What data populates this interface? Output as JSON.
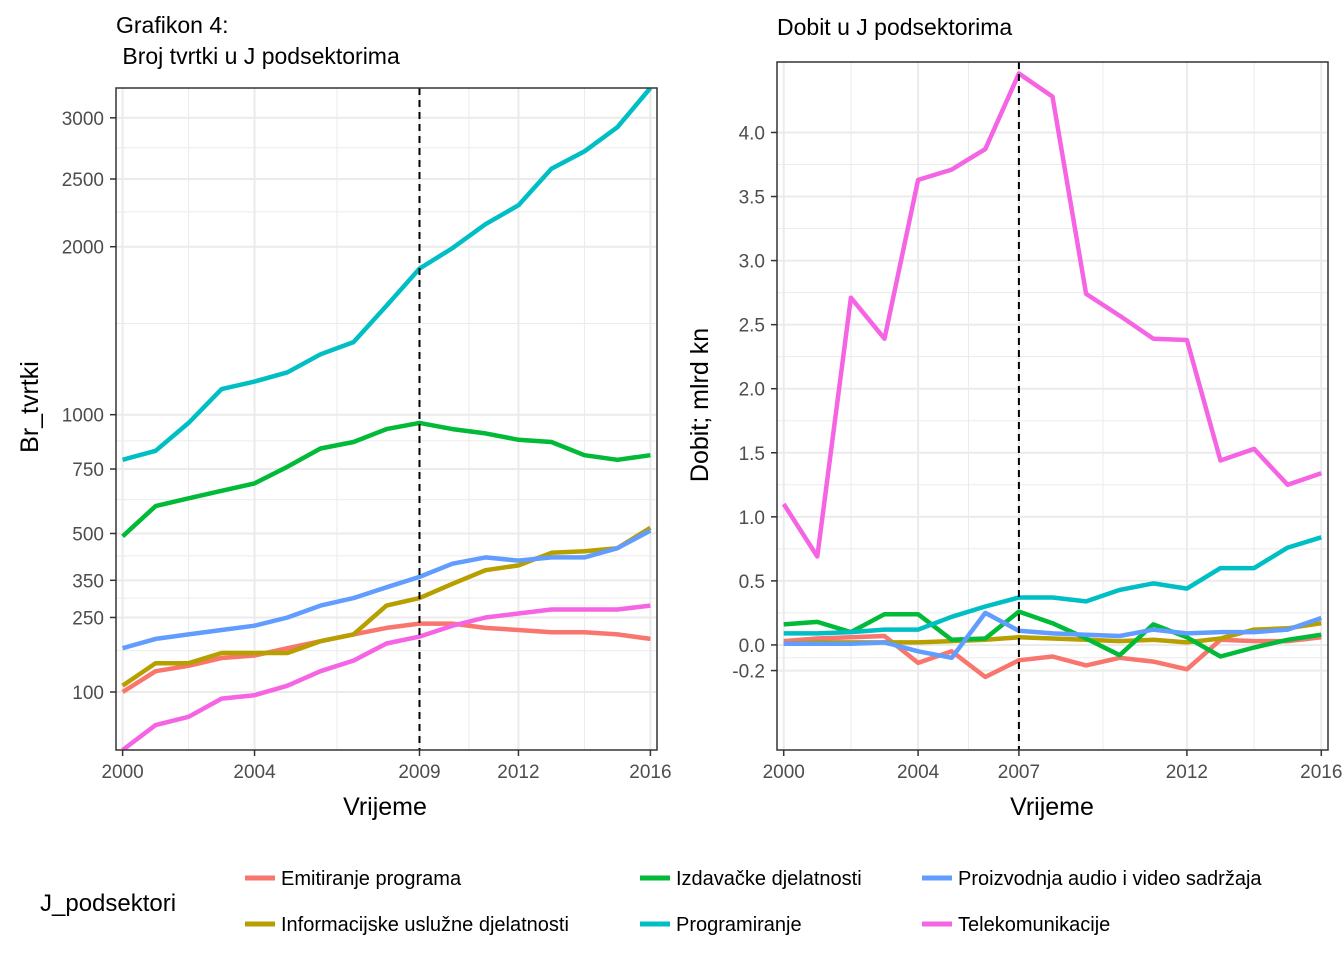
{
  "chart_data": [
    {
      "type": "line",
      "title_line1": "Grafikon 4:",
      "title_line2": " Broj tvrtki u J podsektorima",
      "xlabel": "Vrijeme",
      "ylabel": "Br_tvrtki",
      "xlim": [
        1999.8,
        2016.2
      ],
      "ylim": [
        30,
        3260
      ],
      "x_ticks": [
        2000,
        2004,
        2009,
        2012,
        2016
      ],
      "y_ticks": [
        100,
        250,
        350,
        500,
        750,
        1000,
        2000,
        2500,
        3000
      ],
      "vline": 2009,
      "x": [
        2000,
        2001,
        2002,
        2003,
        2004,
        2005,
        2006,
        2007,
        2008,
        2009,
        2010,
        2011,
        2012,
        2013,
        2014,
        2015,
        2016
      ],
      "series": [
        {
          "name": "Emitiranje programa",
          "values": [
            100,
            135,
            145,
            160,
            165,
            180,
            195,
            210,
            225,
            235,
            235,
            225,
            220,
            215,
            215,
            210,
            200
          ]
        },
        {
          "name": "Informacijske uslužne djelatnosti",
          "values": [
            110,
            150,
            150,
            170,
            170,
            170,
            195,
            210,
            280,
            300,
            340,
            380,
            395,
            435,
            440,
            450,
            520
          ]
        },
        {
          "name": "Izdavačke djelatnosti",
          "values": [
            490,
            600,
            630,
            660,
            690,
            760,
            840,
            870,
            930,
            960,
            930,
            910,
            880,
            870,
            810,
            790,
            810
          ]
        },
        {
          "name": "Programiranje",
          "values": [
            790,
            830,
            960,
            1130,
            1170,
            1220,
            1320,
            1390,
            1610,
            1850,
            1990,
            2160,
            2300,
            2580,
            2720,
            2920,
            3260
          ]
        },
        {
          "name": "Proizvodnja audio i video sadržaja",
          "values": [
            180,
            200,
            210,
            220,
            230,
            250,
            280,
            300,
            330,
            360,
            400,
            420,
            410,
            420,
            420,
            450,
            510
          ]
        },
        {
          "name": "Telekomunikacije",
          "values": [
            30,
            55,
            65,
            90,
            95,
            110,
            135,
            155,
            190,
            205,
            230,
            250,
            260,
            270,
            270,
            270,
            280
          ]
        }
      ]
    },
    {
      "type": "line",
      "title": "Dobit u J podsektorima",
      "xlabel": "Vrijeme",
      "ylabel": "Dobit; mlrd kn",
      "xlim": [
        1999.8,
        2016.2
      ],
      "ylim": [
        -0.82,
        4.55
      ],
      "x_ticks": [
        2000,
        2004,
        2007,
        2012,
        2016
      ],
      "y_ticks": [
        -0.2,
        0.0,
        0.5,
        1.0,
        1.5,
        2.0,
        2.5,
        3.0,
        3.5,
        4.0
      ],
      "y_tick_labels": [
        "-0.2",
        "0.0",
        "0.5",
        "1.0",
        "1.5",
        "2.0",
        "2.5",
        "3.0",
        "3.5",
        "4.0"
      ],
      "vline": 2007,
      "x": [
        2000,
        2001,
        2002,
        2003,
        2004,
        2005,
        2006,
        2007,
        2008,
        2009,
        2010,
        2011,
        2012,
        2013,
        2014,
        2015,
        2016
      ],
      "series": [
        {
          "name": "Emitiranje programa",
          "values": [
            0.03,
            0.05,
            0.06,
            0.07,
            -0.14,
            -0.05,
            -0.25,
            -0.12,
            -0.09,
            -0.16,
            -0.1,
            -0.13,
            -0.19,
            0.04,
            0.03,
            0.03,
            0.06
          ]
        },
        {
          "name": "Informacijske uslužne djelatnosti",
          "values": [
            0.01,
            0.02,
            0.02,
            0.02,
            0.02,
            0.03,
            0.04,
            0.06,
            0.05,
            0.04,
            0.03,
            0.04,
            0.02,
            0.05,
            0.12,
            0.13,
            0.17
          ]
        },
        {
          "name": "Izdavačke djelatnosti",
          "values": [
            0.16,
            0.18,
            0.1,
            0.24,
            0.24,
            0.04,
            0.05,
            0.26,
            0.17,
            0.05,
            -0.08,
            0.16,
            0.06,
            -0.09,
            -0.02,
            0.04,
            0.08
          ]
        },
        {
          "name": "Programiranje",
          "values": [
            0.09,
            0.09,
            0.1,
            0.12,
            0.12,
            0.22,
            0.3,
            0.37,
            0.37,
            0.34,
            0.43,
            0.48,
            0.44,
            0.6,
            0.6,
            0.76,
            0.84
          ]
        },
        {
          "name": "Proizvodnja audio i video sadržaja",
          "values": [
            0.01,
            0.01,
            0.01,
            0.02,
            -0.05,
            -0.1,
            0.25,
            0.11,
            0.09,
            0.08,
            0.07,
            0.12,
            0.09,
            0.1,
            0.1,
            0.12,
            0.21
          ]
        },
        {
          "name": "Telekomunikacije",
          "values": [
            1.1,
            0.69,
            2.71,
            2.39,
            3.63,
            3.71,
            3.87,
            4.46,
            4.28,
            2.74,
            2.57,
            2.39,
            2.38,
            1.44,
            1.53,
            1.25,
            1.34
          ]
        }
      ]
    }
  ],
  "legend": {
    "title": "J_podsektori",
    "items": [
      {
        "label": "Emitiranje programa",
        "color": "#F8766D"
      },
      {
        "label": "Informacijske uslužne djelatnosti",
        "color": "#B79F00"
      },
      {
        "label": "Izdavačke djelatnosti",
        "color": "#00BA38"
      },
      {
        "label": "Programiranje",
        "color": "#00BFC4"
      },
      {
        "label": "Proizvodnja audio i video sadržaja",
        "color": "#619CFF"
      },
      {
        "label": "Telekomunikacije",
        "color": "#F564E3"
      }
    ]
  }
}
